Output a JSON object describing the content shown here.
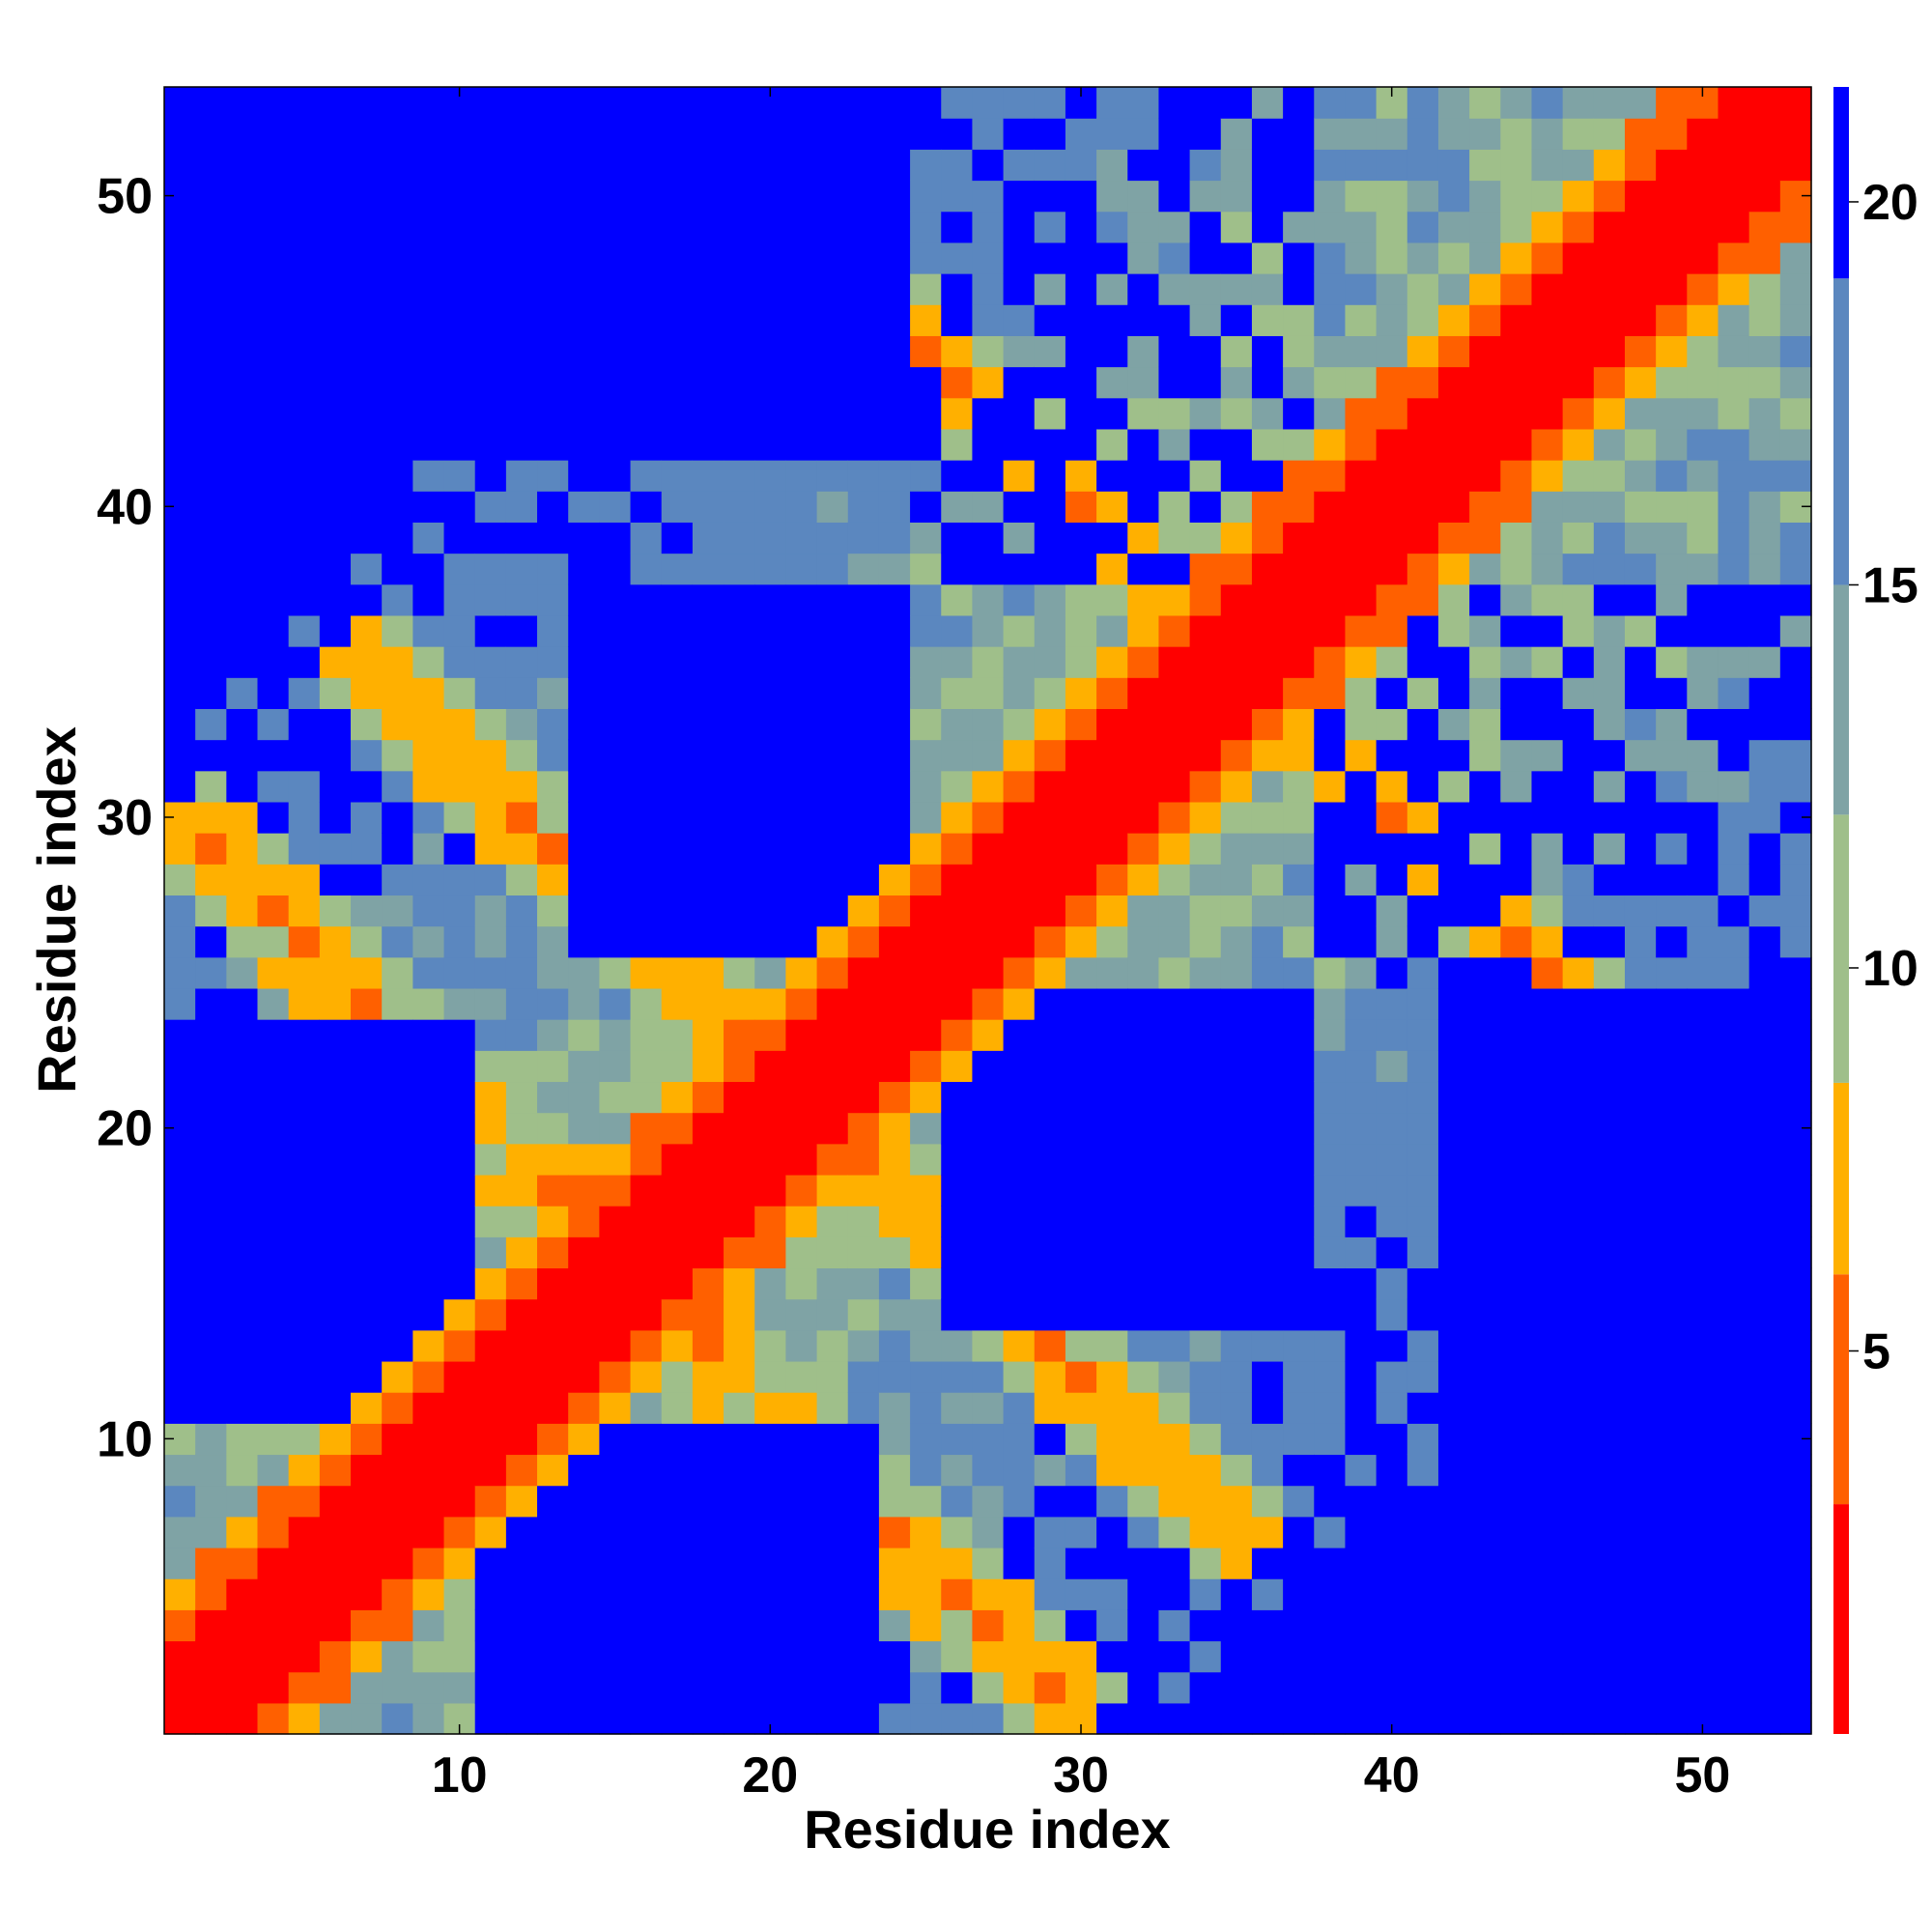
{
  "chart_data": {
    "type": "heatmap",
    "title": "",
    "xlabel": "Residue index",
    "ylabel": "Residue index",
    "n_residues": 53,
    "x_ticks": [
      10,
      20,
      30,
      40,
      50
    ],
    "y_ticks": [
      10,
      20,
      30,
      40,
      50
    ],
    "colorbar_ticks": [
      5,
      10,
      15,
      20
    ],
    "colorbar_range": [
      0,
      21.5
    ],
    "colormap": [
      {
        "max": 3,
        "color": "#ff0000"
      },
      {
        "max": 6,
        "color": "#ff6000"
      },
      {
        "max": 8.5,
        "color": "#ffb000"
      },
      {
        "max": 12,
        "color": "#9fbf8a"
      },
      {
        "max": 15,
        "color": "#7fa3a5"
      },
      {
        "max": 19,
        "color": "#5b87bf"
      },
      {
        "max": 21.5,
        "color": "#0000ff"
      }
    ],
    "value_description": "Distance between residue pairs, symmetric matrix; diagonal band near 0, blue background saturates above 19"
  }
}
